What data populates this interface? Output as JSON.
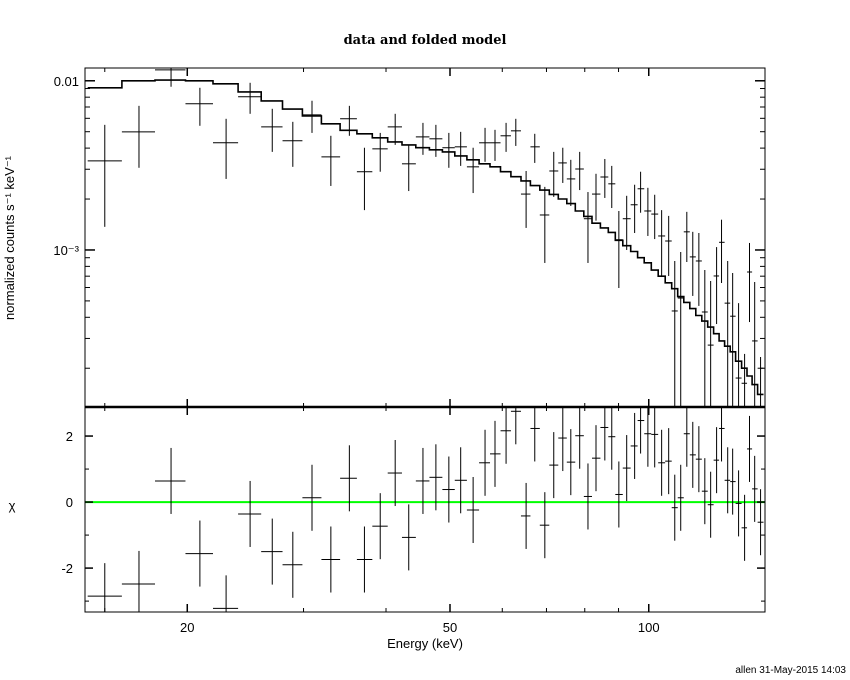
{
  "chart_data": [
    {
      "type": "scatter",
      "title": "data and folded model",
      "xlabel": "Energy (keV)",
      "ylabel": "normalized counts s⁻¹ keV⁻¹",
      "xscale": "log",
      "yscale": "log",
      "xlim": [
        14,
        150
      ],
      "ylim": [
        0.000118,
        0.0119
      ],
      "xticks": [
        {
          "value": 20,
          "label": "20"
        },
        {
          "value": 50,
          "label": "50"
        },
        {
          "value": 100,
          "label": "100"
        }
      ],
      "yticks": [
        {
          "value": 0.01,
          "label": "0.01"
        },
        {
          "value": 0.001,
          "label": "10⁻³"
        }
      ],
      "energy": [
        15.0,
        16.9,
        18.9,
        20.9,
        22.9,
        24.9,
        26.9,
        28.9,
        30.9,
        33.0,
        35.2,
        37.1,
        39.2,
        41.3,
        43.3,
        45.5,
        47.6,
        49.8,
        51.9,
        54.2,
        56.5,
        58.5,
        60.8,
        62.9,
        65.2,
        67.2,
        69.6,
        71.8,
        74.1,
        76.2,
        78.6,
        80.9,
        83.2,
        85.8,
        87.9,
        90.1,
        92.6,
        95.2,
        97.2,
        99.7,
        102.1,
        104.6,
        107.2,
        109.5,
        111.8,
        114.2,
        116.6,
        119.1,
        121.6,
        124.1,
        126.7,
        128.9,
        131.7,
        134.0,
        136.8,
        139.7,
        142.1,
        144.7,
        147.7
      ],
      "series": [
        {
          "name": "data",
          "values": [
            0.00336,
            0.00499,
            0.01161,
            0.00731,
            0.0043,
            0.00804,
            0.00534,
            0.00442,
            0.00629,
            0.00355,
            0.00596,
            0.0029,
            0.00396,
            0.00534,
            0.00323,
            0.00466,
            0.00454,
            0.00402,
            0.00407,
            0.0031,
            0.0043,
            0.0043,
            0.00473,
            0.00506,
            0.00214,
            0.00407,
            0.00161,
            0.00293,
            0.00327,
            0.00263,
            0.00301,
            0.00153,
            0.00214,
            0.0027,
            0.00246,
            0.00115,
            0.00153,
            0.00185,
            0.0023,
            0.0017,
            0.00163,
            0.00121,
            0.00113,
            0.000436,
            0.00052,
            0.00128,
            0.00091,
            0.000861,
            0.00043,
            0.000274,
            0.000702,
            0.00111,
            0.000485,
            0.000406,
            0.000175,
            0.000163,
            0.000741,
            0.00029,
            0.0002
          ],
          "err_hi": [
            0.00549,
            0.00711,
            0.01227,
            0.00909,
            0.00596,
            0.00973,
            0.00683,
            0.00572,
            0.00762,
            0.00473,
            0.00711,
            0.00402,
            0.00492,
            0.00638,
            0.00418,
            0.00564,
            0.00549,
            0.00492,
            0.00499,
            0.00402,
            0.00527,
            0.00513,
            0.00564,
            0.00596,
            0.00293,
            0.00486,
            0.00236,
            0.0038,
            0.00402,
            0.00341,
            0.0038,
            0.0022,
            0.00282,
            0.00345,
            0.00314,
            0.0017,
            0.00209,
            0.00243,
            0.0029,
            0.00233,
            0.00212,
            0.00172,
            0.00159,
            0.000861,
            0.000973,
            0.00168,
            0.00128,
            0.00126,
            0.000762,
            0.000656,
            0.00104,
            0.00151,
            0.000861,
            0.000731,
            0.000485,
            0.000243,
            0.0011,
            0.000647,
            0.000233
          ],
          "err_lo": [
            0.00137,
            0.00306,
            0.00922,
            0.00542,
            0.00263,
            0.00638,
            0.0038,
            0.0031,
            0.00492,
            0.00239,
            0.00473,
            0.00172,
            0.0029,
            0.00418,
            0.00223,
            0.00365,
            0.00355,
            0.00306,
            0.00314,
            0.00217,
            0.00332,
            0.00336,
            0.0038,
            0.00412,
            0.00135,
            0.00327,
            0.000838,
            0.00206,
            0.00249,
            0.00182,
            0.00226,
            0.000838,
            0.00149,
            0.00203,
            0.00177,
            0.000596,
            0.001,
            0.00126,
            0.00166,
            0.00121,
            0.00116,
            0.000692,
            0.000702,
            0.0001,
            0.0001,
            0.000849,
            0.000535,
            0.000467,
            0.0001,
            0.0001,
            0.000365,
            0.000638,
            0.0001,
            0.0001,
            0.0001,
            0.0001,
            0.000375,
            0.0001,
            0.0001
          ]
        },
        {
          "name": "folded model",
          "values": [
            0.00909,
            0.01,
            0.0101,
            0.01,
            0.0096,
            0.0086,
            0.0076,
            0.0068,
            0.0062,
            0.00557,
            0.0051,
            0.00486,
            0.0046,
            0.00435,
            0.00418,
            0.00402,
            0.00391,
            0.0038,
            0.0036,
            0.00341,
            0.00323,
            0.0031,
            0.0029,
            0.00271,
            0.00256,
            0.0024,
            0.00226,
            0.00213,
            0.002,
            0.00188,
            0.0017,
            0.00158,
            0.00144,
            0.00135,
            0.00127,
            0.00114,
            0.00106,
            0.00098,
            0.0009,
            0.00084,
            0.00076,
            0.0007,
            0.00064,
            0.00059,
            0.00053,
            0.00049,
            0.00045,
            0.00041,
            0.00038,
            0.00035,
            0.00032,
            0.00029,
            0.00027,
            0.00025,
            0.00022,
            0.0002,
            0.00018,
            0.00016,
            0.00014
          ]
        }
      ]
    },
    {
      "type": "scatter",
      "xlabel": "Energy (keV)",
      "ylabel": "χ",
      "xscale": "log",
      "xlim": [
        14,
        150
      ],
      "ylim": [
        -3.33,
        2.88
      ],
      "yticks": [
        {
          "value": 2,
          "label": "2"
        },
        {
          "value": 0,
          "label": "0"
        },
        {
          "value": -2,
          "label": "-2"
        }
      ],
      "reference_line": {
        "value": 0,
        "color": "#00ff00"
      },
      "series": [
        {
          "name": "residuals",
          "err": 1,
          "values": [
            -2.85,
            -2.48,
            0.64,
            -1.56,
            -3.22,
            -0.36,
            -1.5,
            -1.9,
            0.13,
            -1.74,
            0.72,
            -1.74,
            -0.73,
            0.88,
            -1.07,
            0.64,
            0.75,
            0.38,
            0.66,
            -0.24,
            1.19,
            1.46,
            2.16,
            2.75,
            -0.42,
            2.23,
            -0.7,
            1.12,
            1.94,
            1.21,
            2.01,
            0.17,
            1.33,
            2.26,
            1.98,
            0.23,
            1.03,
            1.7,
            2.47,
            2.07,
            2.05,
            1.19,
            1.24,
            -0.17,
            0.13,
            2.07,
            1.43,
            1.3,
            0.33,
            -0.08,
            1.27,
            2.23,
            0.66,
            0.62,
            -0.04,
            -0.78,
            1.61,
            0.4,
            -0.61
          ]
        }
      ]
    }
  ],
  "footer": "allen 31-May-2015 14:03"
}
